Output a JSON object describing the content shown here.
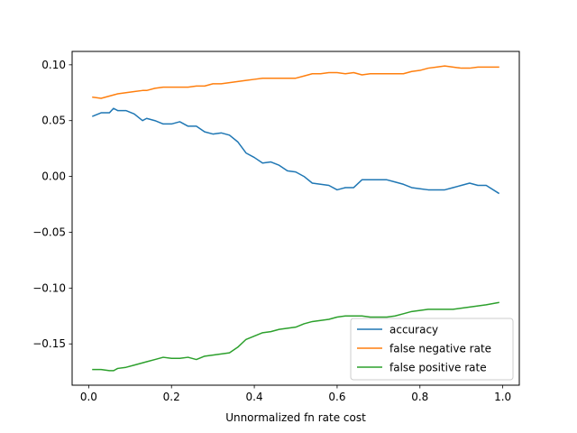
{
  "chart_data": {
    "type": "line",
    "title": "",
    "xlabel": "Unnormalized fn rate cost",
    "ylabel": "",
    "xlim": [
      -0.04,
      1.04
    ],
    "ylim": [
      -0.187,
      0.112
    ],
    "grid": false,
    "legend_position": "lower-right",
    "xticks": [
      0.0,
      0.2,
      0.4,
      0.6,
      0.8,
      1.0
    ],
    "xtick_labels": [
      "0.0",
      "0.2",
      "0.4",
      "0.6",
      "0.8",
      "1.0"
    ],
    "yticks": [
      0.1,
      0.05,
      0.0,
      -0.05,
      -0.1,
      -0.15
    ],
    "ytick_labels": [
      "0.10",
      "0.05",
      "0.00",
      "−0.05",
      "−0.10",
      "−0.15"
    ],
    "x": [
      0.01,
      0.03,
      0.05,
      0.06,
      0.07,
      0.09,
      0.11,
      0.13,
      0.14,
      0.16,
      0.18,
      0.2,
      0.22,
      0.24,
      0.26,
      0.28,
      0.3,
      0.32,
      0.34,
      0.36,
      0.38,
      0.4,
      0.42,
      0.44,
      0.46,
      0.48,
      0.5,
      0.52,
      0.54,
      0.56,
      0.58,
      0.6,
      0.62,
      0.64,
      0.66,
      0.68,
      0.7,
      0.72,
      0.74,
      0.76,
      0.78,
      0.8,
      0.82,
      0.84,
      0.86,
      0.88,
      0.9,
      0.92,
      0.94,
      0.96,
      0.99
    ],
    "series": [
      {
        "name": "accuracy",
        "color": "#1f77b4",
        "values": [
          0.054,
          0.057,
          0.057,
          0.061,
          0.059,
          0.059,
          0.056,
          0.05,
          0.052,
          0.05,
          0.047,
          0.047,
          0.049,
          0.045,
          0.045,
          0.04,
          0.038,
          0.039,
          0.037,
          0.031,
          0.021,
          0.017,
          0.012,
          0.013,
          0.01,
          0.005,
          0.004,
          0.0,
          -0.006,
          -0.007,
          -0.008,
          -0.012,
          -0.01,
          -0.01,
          -0.003,
          -0.003,
          -0.003,
          -0.003,
          -0.005,
          -0.007,
          -0.01,
          -0.011,
          -0.012,
          -0.012,
          -0.012,
          -0.01,
          -0.008,
          -0.006,
          -0.008,
          -0.008,
          -0.015
        ]
      },
      {
        "name": "false negative rate",
        "color": "#ff7f0e",
        "values": [
          0.071,
          0.07,
          0.072,
          0.073,
          0.074,
          0.075,
          0.076,
          0.077,
          0.077,
          0.079,
          0.08,
          0.08,
          0.08,
          0.08,
          0.081,
          0.081,
          0.083,
          0.083,
          0.084,
          0.085,
          0.086,
          0.087,
          0.088,
          0.088,
          0.088,
          0.088,
          0.088,
          0.09,
          0.092,
          0.092,
          0.093,
          0.093,
          0.092,
          0.093,
          0.091,
          0.092,
          0.092,
          0.092,
          0.092,
          0.092,
          0.094,
          0.095,
          0.097,
          0.098,
          0.099,
          0.098,
          0.097,
          0.097,
          0.098,
          0.098,
          0.098
        ]
      },
      {
        "name": "false positive rate",
        "color": "#2ca02c",
        "values": [
          -0.173,
          -0.173,
          -0.174,
          -0.174,
          -0.172,
          -0.171,
          -0.169,
          -0.167,
          -0.166,
          -0.164,
          -0.162,
          -0.163,
          -0.163,
          -0.162,
          -0.164,
          -0.161,
          -0.16,
          -0.159,
          -0.158,
          -0.153,
          -0.146,
          -0.143,
          -0.14,
          -0.139,
          -0.137,
          -0.136,
          -0.135,
          -0.132,
          -0.13,
          -0.129,
          -0.128,
          -0.126,
          -0.125,
          -0.125,
          -0.125,
          -0.126,
          -0.126,
          -0.126,
          -0.125,
          -0.123,
          -0.121,
          -0.12,
          -0.119,
          -0.119,
          -0.119,
          -0.119,
          -0.118,
          -0.117,
          -0.116,
          -0.115,
          -0.113
        ]
      }
    ]
  }
}
